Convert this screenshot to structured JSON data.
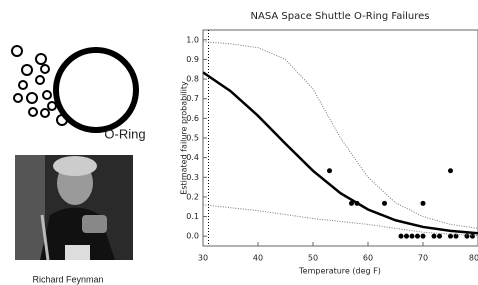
{
  "figure": {
    "oring_label": "O-Ring",
    "photo_caption": "Richard Feynman"
  },
  "chart_data": {
    "type": "scatter",
    "title": "NASA Space Shuttle O-Ring Failures",
    "x_label": "Temperature (deg F)",
    "y_label": "Estimated failure probability",
    "xlim": [
      30,
      80
    ],
    "ylim": [
      -0.05,
      1.05
    ],
    "xticks": [
      30,
      40,
      50,
      60,
      70,
      80
    ],
    "yticks": [
      {
        "value": 0,
        "label": "0.0"
      },
      0.1,
      0.2,
      0.3,
      0.4,
      0.5,
      0.6,
      0.7,
      0.8,
      0.9,
      {
        "value": 1,
        "label": "1.0"
      }
    ],
    "vline": 31,
    "series": [
      {
        "type": "scatter",
        "color": "#000000",
        "x": [
          53,
          57,
          58,
          63,
          66,
          67,
          68,
          69,
          70,
          70,
          72,
          73,
          75,
          75,
          76,
          78,
          79
        ],
        "values": [
          0.333,
          0.167,
          0.167,
          0.167,
          0,
          0,
          0,
          0,
          0.167,
          0,
          0,
          0,
          0.333,
          0,
          0,
          0,
          0
        ]
      },
      {
        "type": "line",
        "color": "#000000",
        "x": [
          30,
          35,
          40,
          45,
          50,
          55,
          60,
          65,
          70,
          75,
          80
        ],
        "values": [
          0.834,
          0.739,
          0.613,
          0.471,
          0.333,
          0.219,
          0.136,
          0.081,
          0.047,
          0.027,
          0.015
        ]
      },
      {
        "type": "dotted",
        "color": "#777777",
        "x": [
          30,
          35,
          40,
          45,
          50,
          55,
          60,
          65,
          70,
          75,
          80
        ],
        "values": [
          0.99,
          0.98,
          0.96,
          0.9,
          0.75,
          0.5,
          0.3,
          0.17,
          0.1,
          0.06,
          0.04
        ]
      },
      {
        "type": "dotted",
        "color": "#777777",
        "x": [
          30,
          35,
          40,
          45,
          50,
          55,
          60,
          65,
          70,
          75,
          80
        ],
        "values": [
          0.16,
          0.145,
          0.13,
          0.11,
          0.09,
          0.075,
          0.06,
          0.04,
          0.02,
          0.01,
          0.003
        ]
      }
    ]
  }
}
